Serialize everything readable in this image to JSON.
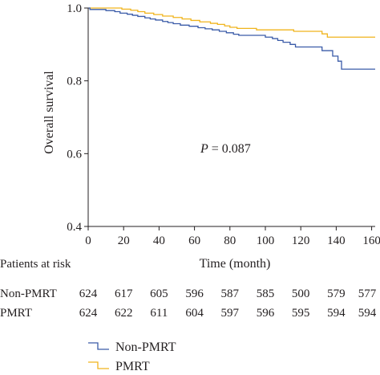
{
  "chart_data": {
    "type": "line",
    "subtype": "kaplan-meier step",
    "xlabel": "Time (month)",
    "ylabel": "Overall survival",
    "xlim": [
      0,
      162
    ],
    "ylim": [
      0.4,
      1.0
    ],
    "x_ticks": [
      0,
      20,
      40,
      60,
      80,
      100,
      120,
      140,
      160
    ],
    "y_ticks": [
      0.4,
      0.6,
      0.8,
      1.0
    ],
    "y_tick_labels": [
      "0.4",
      "0.6",
      "0.8",
      "1.0"
    ],
    "annotation": {
      "italic": "P",
      "text": " = 0.087"
    },
    "series": [
      {
        "name": "Non-PMRT",
        "color": "#3a5ba8",
        "points": [
          [
            0,
            1.0
          ],
          [
            1,
            0.996
          ],
          [
            10,
            0.993
          ],
          [
            15,
            0.99
          ],
          [
            18,
            0.986
          ],
          [
            22,
            0.983
          ],
          [
            25,
            0.98
          ],
          [
            28,
            0.977
          ],
          [
            32,
            0.973
          ],
          [
            35,
            0.97
          ],
          [
            38,
            0.967
          ],
          [
            42,
            0.963
          ],
          [
            45,
            0.96
          ],
          [
            48,
            0.957
          ],
          [
            52,
            0.953
          ],
          [
            57,
            0.95
          ],
          [
            62,
            0.946
          ],
          [
            66,
            0.943
          ],
          [
            70,
            0.94
          ],
          [
            74,
            0.936
          ],
          [
            78,
            0.932
          ],
          [
            82,
            0.928
          ],
          [
            85,
            0.925
          ],
          [
            100,
            0.92
          ],
          [
            104,
            0.916
          ],
          [
            107,
            0.911
          ],
          [
            110,
            0.906
          ],
          [
            114,
            0.9
          ],
          [
            117,
            0.893
          ],
          [
            132,
            0.883
          ],
          [
            138,
            0.868
          ],
          [
            141,
            0.854
          ],
          [
            143,
            0.832
          ],
          [
            162,
            0.832
          ]
        ]
      },
      {
        "name": "PMRT",
        "color": "#f0b41c",
        "points": [
          [
            0,
            1.0
          ],
          [
            19,
            0.997
          ],
          [
            24,
            0.994
          ],
          [
            28,
            0.99
          ],
          [
            32,
            0.986
          ],
          [
            37,
            0.982
          ],
          [
            42,
            0.978
          ],
          [
            48,
            0.974
          ],
          [
            53,
            0.97
          ],
          [
            58,
            0.966
          ],
          [
            63,
            0.962
          ],
          [
            69,
            0.958
          ],
          [
            73,
            0.955
          ],
          [
            77,
            0.951
          ],
          [
            80,
            0.947
          ],
          [
            84,
            0.944
          ],
          [
            95,
            0.94
          ],
          [
            116,
            0.936
          ],
          [
            132,
            0.929
          ],
          [
            135,
            0.92
          ],
          [
            162,
            0.92
          ]
        ]
      }
    ],
    "risk_table": {
      "title": "Patients at risk",
      "rows": [
        {
          "label": "Non-PMRT",
          "values": [
            "624",
            "617",
            "605",
            "596",
            "587",
            "585",
            "500",
            "579",
            "577"
          ]
        },
        {
          "label": "PMRT",
          "values": [
            "624",
            "622",
            "611",
            "604",
            "597",
            "596",
            "595",
            "594",
            "594"
          ]
        }
      ]
    },
    "legend": {
      "position": "bottom-center",
      "entries": [
        "Non-PMRT",
        "PMRT"
      ]
    }
  }
}
